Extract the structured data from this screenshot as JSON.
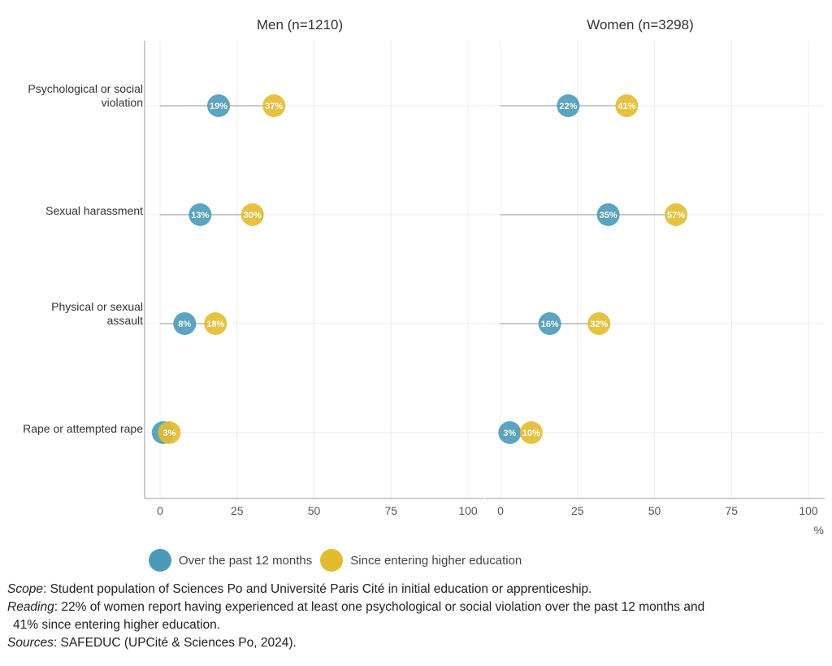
{
  "chart_data": {
    "type": "dumbbell",
    "unit": "%",
    "xlim": [
      0,
      100
    ],
    "ticks": [
      0,
      25,
      50,
      75,
      100
    ],
    "tick_labels": [
      "0",
      "25",
      "50",
      "75",
      "100"
    ],
    "grid": true,
    "legend_position": "bottom",
    "categories": [
      "Psychological or social violation",
      "Sexual harassment",
      "Physical or sexual assault",
      "Rape or attempted rape"
    ],
    "series": [
      {
        "name": "Over the past 12 months",
        "color": "#4a9ab8"
      },
      {
        "name": "Since entering higher education",
        "color": "#e3bb2f"
      }
    ],
    "panels": [
      {
        "title": "Men (n=1210)",
        "values": {
          "Over the past 12 months": [
            19,
            13,
            8,
            1
          ],
          "Since entering higher education": [
            37,
            30,
            18,
            3
          ]
        },
        "labels": {
          "Over the past 12 months": [
            "19%",
            "13%",
            "8%",
            ""
          ],
          "Since entering higher education": [
            "37%",
            "30%",
            "18%",
            "3%"
          ]
        }
      },
      {
        "title": "Women (n=3298)",
        "values": {
          "Over the past 12 months": [
            22,
            35,
            16,
            3
          ],
          "Since entering higher education": [
            41,
            57,
            32,
            10
          ]
        },
        "labels": {
          "Over the past 12 months": [
            "22%",
            "35%",
            "16%",
            "3%"
          ],
          "Since entering higher education": [
            "41%",
            "57%",
            "32%",
            "10%"
          ]
        }
      }
    ]
  },
  "notes": {
    "scope_label": "Scope",
    "scope_text": ": Student population of Sciences Po and Université Paris Cité in initial education or apprenticeship.",
    "reading_label": "Reading",
    "reading_text_1": ": 22% of women report having experienced at least one psychological or social violation over the past 12 months and",
    "reading_text_2": "41% since entering higher education.",
    "sources_label": "Sources",
    "sources_text": ": SAFEDUC (UPCité & Sciences Po, 2024)."
  }
}
